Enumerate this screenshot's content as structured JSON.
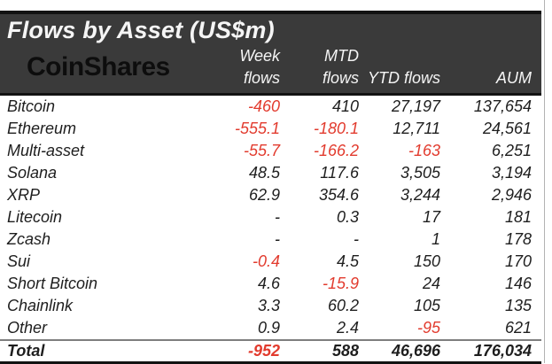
{
  "header": {
    "title": "Flows by Asset (US$m)",
    "brand": "CoinShares"
  },
  "table": {
    "columns": [
      "Week\nflows",
      "MTD\nflows",
      "YTD flows",
      "AUM"
    ],
    "rows": [
      {
        "asset": "Bitcoin",
        "week": "-460",
        "mtd": "410",
        "ytd": "27,197",
        "aum": "137,654"
      },
      {
        "asset": "Ethereum",
        "week": "-555.1",
        "mtd": "-180.1",
        "ytd": "12,711",
        "aum": "24,561"
      },
      {
        "asset": "Multi-asset",
        "week": "-55.7",
        "mtd": "-166.2",
        "ytd": "-163",
        "aum": "6,251"
      },
      {
        "asset": "Solana",
        "week": "48.5",
        "mtd": "117.6",
        "ytd": "3,505",
        "aum": "3,194"
      },
      {
        "asset": "XRP",
        "week": "62.9",
        "mtd": "354.6",
        "ytd": "3,244",
        "aum": "2,946"
      },
      {
        "asset": "Litecoin",
        "week": "-",
        "mtd": "0.3",
        "ytd": "17",
        "aum": "181"
      },
      {
        "asset": "Zcash",
        "week": "-",
        "mtd": "-",
        "ytd": "1",
        "aum": "178"
      },
      {
        "asset": "Sui",
        "week": "-0.4",
        "mtd": "4.5",
        "ytd": "150",
        "aum": "170"
      },
      {
        "asset": "Short Bitcoin",
        "week": "4.6",
        "mtd": "-15.9",
        "ytd": "24",
        "aum": "146"
      },
      {
        "asset": "Chainlink",
        "week": "3.3",
        "mtd": "60.2",
        "ytd": "105",
        "aum": "135"
      },
      {
        "asset": "Other",
        "week": "0.9",
        "mtd": "2.4",
        "ytd": "-95",
        "aum": "621"
      }
    ],
    "total": {
      "asset": "Total",
      "week": "-952",
      "mtd": "588",
      "ytd": "46,696",
      "aum": "176,034"
    }
  },
  "colors": {
    "negative": "#e23b2e",
    "header_bg": "#3a3a3a",
    "header_text": "#f5f5f5",
    "logo_color": "#0d0d0d",
    "body_text": "#1e1e1e",
    "border_black": "#121212"
  }
}
